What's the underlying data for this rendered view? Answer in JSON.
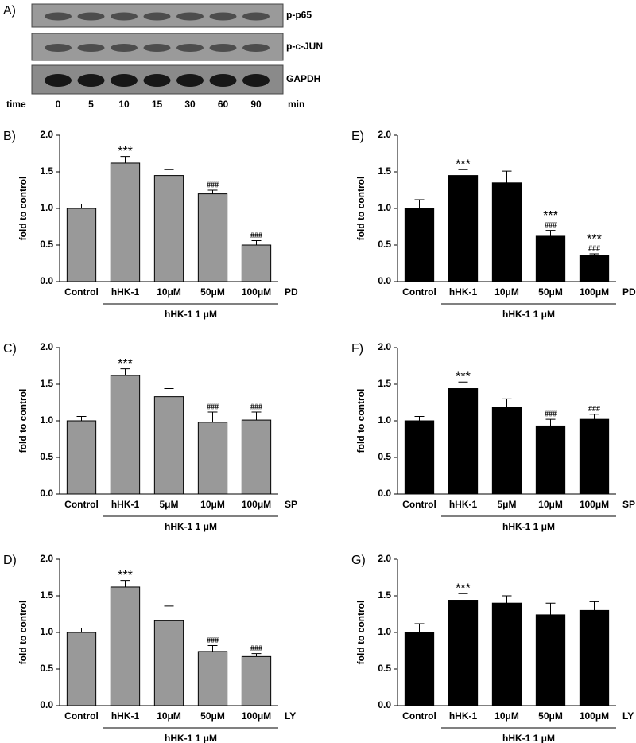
{
  "blot": {
    "label": "A)",
    "proteins": [
      "p-p65",
      "p-c-JUN",
      "GAPDH"
    ],
    "time_label": "time",
    "times": [
      "0",
      "5",
      "10",
      "15",
      "30",
      "60",
      "90"
    ],
    "time_unit": "min"
  },
  "chart_data": [
    {
      "type": "bar",
      "panel": "B)",
      "ylabel": "fold to control",
      "color": "#999999",
      "categories": [
        "Control",
        "hHK-1",
        "10μM",
        "50μM",
        "100μM"
      ],
      "values": [
        1.0,
        1.62,
        1.45,
        1.2,
        0.5
      ],
      "errors": [
        0.06,
        0.09,
        0.08,
        0.05,
        0.06
      ],
      "annotations": [
        null,
        [
          "***"
        ],
        null,
        [
          "###"
        ],
        [
          "###"
        ]
      ],
      "group_label": "hHK-1 1 μM",
      "treatment": "PD",
      "ylim": [
        0,
        2
      ],
      "yticks": [
        {
          "value": 0,
          "label": "0.0"
        },
        0.5,
        {
          "value": 1,
          "label": "1.0"
        },
        1.5,
        {
          "value": 2,
          "label": "2.0"
        }
      ]
    },
    {
      "type": "bar",
      "panel": "E)",
      "ylabel": "fold to control",
      "color": "#000000",
      "categories": [
        "Control",
        "hHK-1",
        "10μM",
        "50μM",
        "100μM"
      ],
      "values": [
        1.0,
        1.45,
        1.35,
        0.62,
        0.36
      ],
      "errors": [
        0.12,
        0.08,
        0.16,
        0.08,
        0.02
      ],
      "annotations": [
        null,
        [
          "***"
        ],
        null,
        [
          "***",
          "###"
        ],
        [
          "***",
          "###"
        ]
      ],
      "group_label": "hHK-1 1 μM",
      "treatment": "PD",
      "ylim": [
        0,
        2
      ],
      "yticks": [
        {
          "value": 0,
          "label": "0.0"
        },
        0.5,
        {
          "value": 1,
          "label": "1.0"
        },
        1.5,
        {
          "value": 2,
          "label": "2.0"
        }
      ]
    },
    {
      "type": "bar",
      "panel": "C)",
      "ylabel": "fold to control",
      "color": "#999999",
      "categories": [
        "Control",
        "hHK-1",
        "5μM",
        "10μM",
        "100μM"
      ],
      "values": [
        1.0,
        1.62,
        1.33,
        0.98,
        1.01
      ],
      "errors": [
        0.06,
        0.09,
        0.11,
        0.14,
        0.11
      ],
      "annotations": [
        null,
        [
          "***"
        ],
        null,
        [
          "###"
        ],
        [
          "###"
        ]
      ],
      "group_label": "hHK-1 1 μM",
      "treatment": "SP",
      "ylim": [
        0,
        2
      ],
      "yticks": [
        {
          "value": 0,
          "label": "0.0"
        },
        0.5,
        {
          "value": 1,
          "label": "1.0"
        },
        1.5,
        {
          "value": 2,
          "label": "2.0"
        }
      ]
    },
    {
      "type": "bar",
      "panel": "F)",
      "ylabel": "fold to control",
      "color": "#000000",
      "categories": [
        "Control",
        "hHK-1",
        "5μM",
        "10μM",
        "100μM"
      ],
      "values": [
        1.0,
        1.44,
        1.18,
        0.93,
        1.02
      ],
      "errors": [
        0.06,
        0.09,
        0.12,
        0.09,
        0.07
      ],
      "annotations": [
        null,
        [
          "***"
        ],
        null,
        [
          "###"
        ],
        [
          "###"
        ]
      ],
      "group_label": "hHK-1 1 μM",
      "treatment": "SP",
      "ylim": [
        0,
        2
      ],
      "yticks": [
        {
          "value": 0,
          "label": "0.0"
        },
        0.5,
        {
          "value": 1,
          "label": "1.0"
        },
        1.5,
        {
          "value": 2,
          "label": "2.0"
        }
      ]
    },
    {
      "type": "bar",
      "panel": "D)",
      "ylabel": "fold to control",
      "color": "#999999",
      "categories": [
        "Control",
        "hHK-1",
        "10μM",
        "50μM",
        "100μM"
      ],
      "values": [
        1.0,
        1.62,
        1.16,
        0.74,
        0.67
      ],
      "errors": [
        0.06,
        0.09,
        0.2,
        0.08,
        0.04
      ],
      "annotations": [
        null,
        [
          "***"
        ],
        null,
        [
          "###"
        ],
        [
          "###"
        ]
      ],
      "group_label": "hHK-1 1 μM",
      "treatment": "LY",
      "ylim": [
        0,
        2
      ],
      "yticks": [
        {
          "value": 0,
          "label": "0.0"
        },
        0.5,
        {
          "value": 1,
          "label": "1.0"
        },
        1.5,
        {
          "value": 2,
          "label": "2.0"
        }
      ]
    },
    {
      "type": "bar",
      "panel": "G)",
      "ylabel": "fold to control",
      "color": "#000000",
      "categories": [
        "Control",
        "hHK-1",
        "10μM",
        "50μM",
        "100μM"
      ],
      "values": [
        1.0,
        1.44,
        1.4,
        1.24,
        1.3
      ],
      "errors": [
        0.12,
        0.09,
        0.1,
        0.16,
        0.12
      ],
      "annotations": [
        null,
        [
          "***"
        ],
        null,
        null,
        null
      ],
      "group_label": "hHK-1 1 μM",
      "treatment": "LY",
      "ylim": [
        0,
        2
      ],
      "yticks": [
        {
          "value": 0,
          "label": "0.0"
        },
        0.5,
        {
          "value": 1,
          "label": "1.0"
        },
        1.5,
        {
          "value": 2,
          "label": "2.0"
        }
      ]
    }
  ]
}
